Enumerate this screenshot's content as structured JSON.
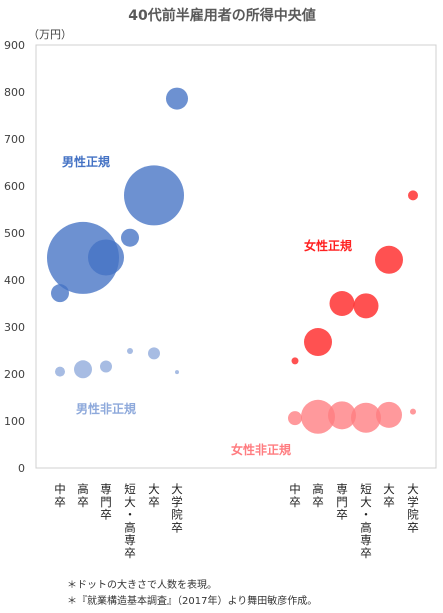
{
  "chart_data": {
    "type": "scatter",
    "title": "40代前半雇用者の所得中央値",
    "ylabel": "（万円）",
    "ylim": [
      0,
      900
    ],
    "yticks": [
      0,
      100,
      200,
      300,
      400,
      500,
      600,
      700,
      800,
      900
    ],
    "grid": false,
    "categories": [
      "中卒",
      "高卒",
      "専門卒",
      "短大・高専卒",
      "大卒",
      "大学院卒",
      "中卒",
      "高卒",
      "専門卒",
      "短大・高専卒",
      "大卒",
      "大学院卒"
    ],
    "series": [
      {
        "name": "男性正規",
        "color": "#4472C4",
        "x": [
          "中卒",
          "高卒",
          "専門卒",
          "短大・高専卒",
          "大卒",
          "大学院卒"
        ],
        "y": [
          372,
          447,
          448,
          490,
          580,
          786
        ],
        "size": [
          9,
          36,
          18,
          9,
          30,
          11
        ]
      },
      {
        "name": "男性非正規",
        "color": "#8EA9DB",
        "x": [
          "中卒",
          "高卒",
          "専門卒",
          "短大・高専卒",
          "大卒",
          "大学院卒"
        ],
        "y": [
          205,
          210,
          216,
          249,
          244,
          204
        ],
        "size": [
          5,
          9,
          6,
          3,
          6,
          2
        ]
      },
      {
        "name": "女性正規",
        "color": "#FF2020",
        "x": [
          "中卒",
          "高卒",
          "専門卒",
          "短大・高専卒",
          "大卒",
          "大学院卒"
        ],
        "y": [
          228,
          268,
          350,
          345,
          443,
          580
        ],
        "size": [
          3.5,
          14,
          12.5,
          12.5,
          14,
          5
        ]
      },
      {
        "name": "女性非正規",
        "color": "#FF7C80",
        "x": [
          "中卒",
          "高卒",
          "専門卒",
          "短大・高専卒",
          "大卒",
          "大学院卒"
        ],
        "y": [
          106,
          109,
          112,
          107,
          113,
          120
        ],
        "size": [
          7,
          17,
          14,
          15,
          13,
          3
        ]
      }
    ],
    "notes": [
      "＊ドットの大きさで人数を表現。",
      "＊『就業構造基本調査』（2017年）より舞田敏彦作成。"
    ]
  }
}
